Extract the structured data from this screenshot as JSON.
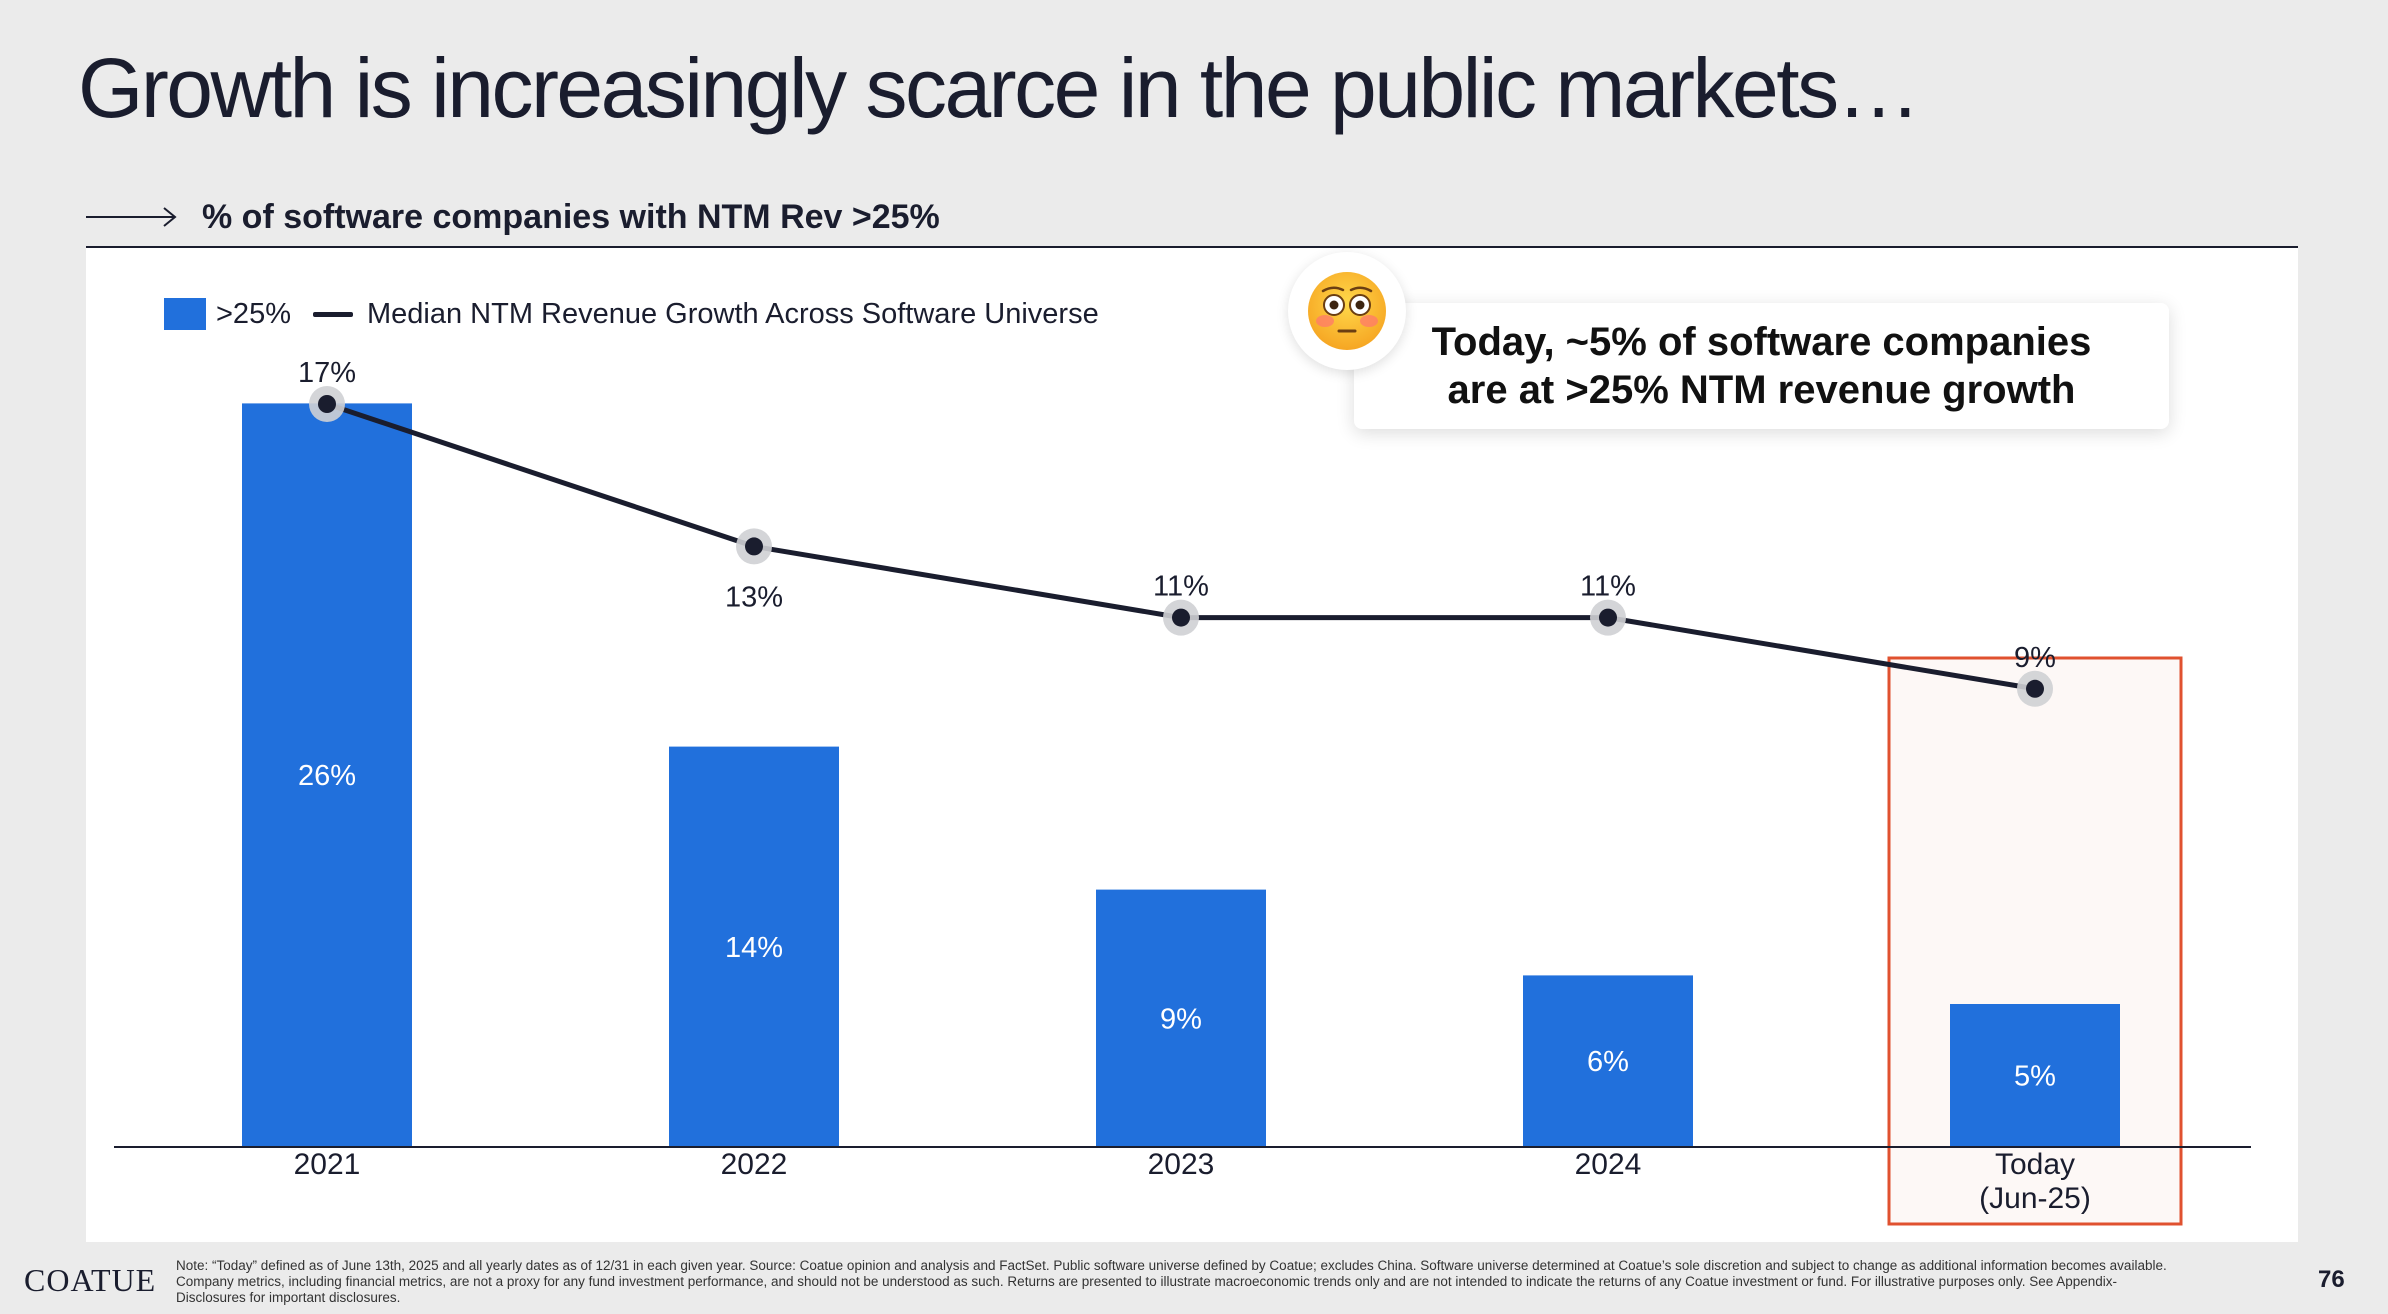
{
  "slide": {
    "title": "Growth is increasingly scarce in the public markets…",
    "subtitle": "% of software companies with NTM Rev >25%"
  },
  "legend": {
    "bar_label": ">25%",
    "line_label": "Median NTM Revenue Growth Across Software Universe"
  },
  "callout": {
    "text": "Today, ~5% of software companies\nare at >25% NTM revenue growth",
    "emoji": "flushed-face-icon"
  },
  "chart_data": {
    "type": "bar",
    "categories": [
      "2021",
      "2022",
      "2023",
      "2024",
      "Today\n(Jun-25)"
    ],
    "series": [
      {
        "name": ">25%",
        "type": "bar",
        "values": [
          26,
          14,
          9,
          6,
          5
        ],
        "labels": [
          "26%",
          "14%",
          "9%",
          "6%",
          "5%"
        ]
      },
      {
        "name": "Median NTM Revenue Growth Across Software Universe",
        "type": "line",
        "values": [
          17,
          13,
          11,
          11,
          9
        ],
        "labels": [
          "17%",
          "13%",
          "11%",
          "11%",
          "9%"
        ]
      }
    ],
    "highlight_category": "Today\n(Jun-25)",
    "colors": {
      "bar": "#2170dc",
      "line": "#1a1d2e",
      "highlight_border": "#e0512f",
      "highlight_fill": "#fdf8f6"
    },
    "grid": false,
    "legend_position": "top-left"
  },
  "footer": {
    "logo": "COATUE",
    "note": "Note: “Today” defined as of June 13th, 2025 and all yearly dates as of 12/31 in each given year.  Source: Coatue opinion and analysis and FactSet. Public software universe defined by Coatue; excludes China. Software universe determined at Coatue’s sole discretion and subject to change as additional information becomes available. Company metrics, including financial metrics, are not a proxy for any fund investment performance, and should not be understood as such. Returns are presented to illustrate macroeconomic trends only and are not intended to indicate the returns of any Coatue investment or fund. For illustrative purposes only. See Appendix-Disclosures for important disclosures.",
    "page_number": "76"
  }
}
